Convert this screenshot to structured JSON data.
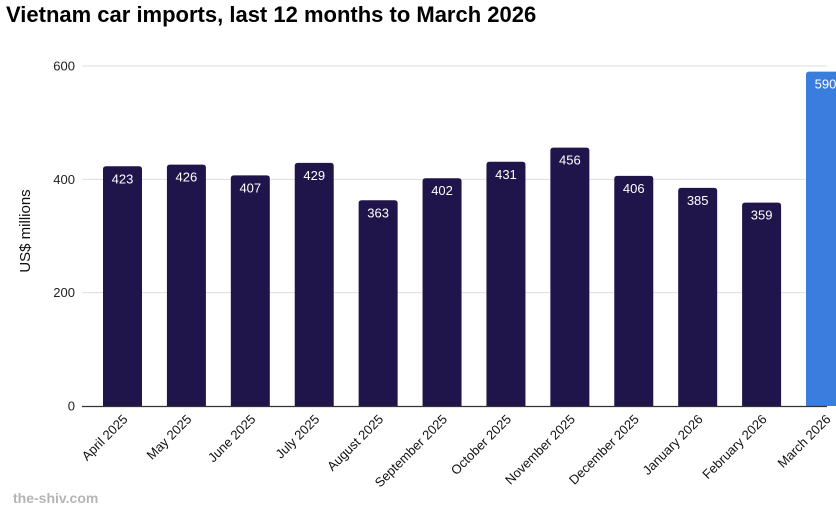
{
  "title": "Vietnam car imports, last 12 months to March 2026",
  "footer": "the-shiv.com",
  "colors": {
    "bar": "#20154b",
    "highlight": "#3b7ddd",
    "grid": "#dddddd",
    "axis": "#333333"
  },
  "chart_data": {
    "type": "bar",
    "title": "Vietnam car imports, last 12 months to March 2026",
    "xlabel": "",
    "ylabel": "US$ millions",
    "ylim": [
      0,
      600
    ],
    "yticks": [
      0,
      200,
      400,
      600
    ],
    "grid": true,
    "categories": [
      "April 2025",
      "May 2025",
      "June 2025",
      "July 2025",
      "August 2025",
      "September 2025",
      "October 2025",
      "November 2025",
      "December 2025",
      "January 2026",
      "February 2026",
      "March 2026"
    ],
    "values": [
      423,
      426,
      407,
      429,
      363,
      402,
      431,
      456,
      406,
      385,
      359,
      590
    ],
    "highlight_index": 11
  }
}
